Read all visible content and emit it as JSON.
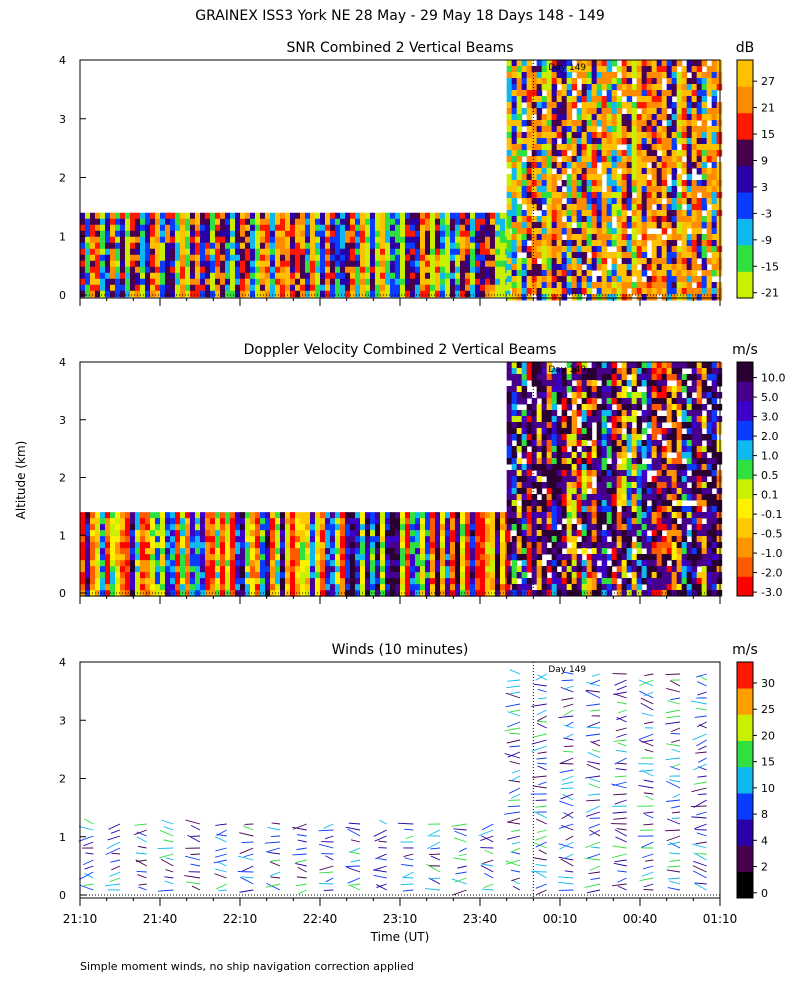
{
  "page_title": "GRAINEX ISS3 York NE  28 May - 29 May 18 Days 148 - 149",
  "footnote": "Simple moment winds, no ship navigation correction applied",
  "shared_axes": {
    "xlabel": "Time (UT)",
    "ylabel": "Altitude (km)",
    "x_ticks": [
      "21:10",
      "21:40",
      "22:10",
      "22:40",
      "23:10",
      "23:40",
      "00:10",
      "00:40",
      "01:10"
    ],
    "y_ticks": [
      "0",
      "1",
      "2",
      "3",
      "4"
    ],
    "xlim": [
      "21:10",
      "01:10"
    ],
    "ylim": [
      0,
      4
    ],
    "day_marker": {
      "label": "Day 149",
      "time": "00:00"
    }
  },
  "chart_data": [
    {
      "type": "heatmap",
      "title": "SNR Combined 2 Vertical Beams",
      "unit": "dB",
      "colorbar_ticks": [
        "27",
        "21",
        "15",
        "9",
        "3",
        "-3",
        "-9",
        "-15",
        "-21"
      ],
      "colorbar_colors": [
        "#c8f000",
        "#30e040",
        "#10b8f0",
        "#0a3cff",
        "#2a00a8",
        "#46004e",
        "#ff1800",
        "#ff8c00",
        "#ffc000"
      ],
      "coverage": [
        {
          "start": "21:10",
          "end": "23:50",
          "top_km": 1.4
        },
        {
          "start": "23:50",
          "end": "01:10",
          "top_km": 4.0
        }
      ]
    },
    {
      "type": "heatmap",
      "title": "Doppler Velocity Combined 2 Vertical Beams",
      "unit": "m/s",
      "colorbar_ticks": [
        "10.0",
        "5.0",
        "3.0",
        "2.0",
        "1.0",
        "0.5",
        "0.1",
        "-0.1",
        "-0.5",
        "-1.0",
        "-2.0",
        "-3.0"
      ],
      "colorbar_colors": [
        "#ff0000",
        "#ff5a00",
        "#ff9600",
        "#ffc800",
        "#fff000",
        "#c8f000",
        "#30e040",
        "#10b8f0",
        "#0a3cff",
        "#3c00c8",
        "#46008c",
        "#2a0032"
      ],
      "coverage": [
        {
          "start": "21:10",
          "end": "23:50",
          "top_km": 1.4
        },
        {
          "start": "23:50",
          "end": "01:10",
          "top_km": 4.0
        }
      ]
    },
    {
      "type": "wind_barbs",
      "title": "Winds (10 minutes)",
      "unit": "m/s",
      "colorbar_ticks": [
        "30",
        "25",
        "20",
        "15",
        "10",
        "8",
        "4",
        "2",
        "0"
      ],
      "colorbar_colors": [
        "#000000",
        "#46004e",
        "#2a00a8",
        "#0a3cff",
        "#10b8f0",
        "#30e040",
        "#c8f000",
        "#ffa000",
        "#ff1800"
      ],
      "profile_interval": "10 minutes",
      "coverage": [
        {
          "start": "21:10",
          "end": "23:50",
          "top_km": 1.4
        },
        {
          "start": "23:50",
          "end": "01:10",
          "top_km": 4.0
        }
      ]
    }
  ]
}
